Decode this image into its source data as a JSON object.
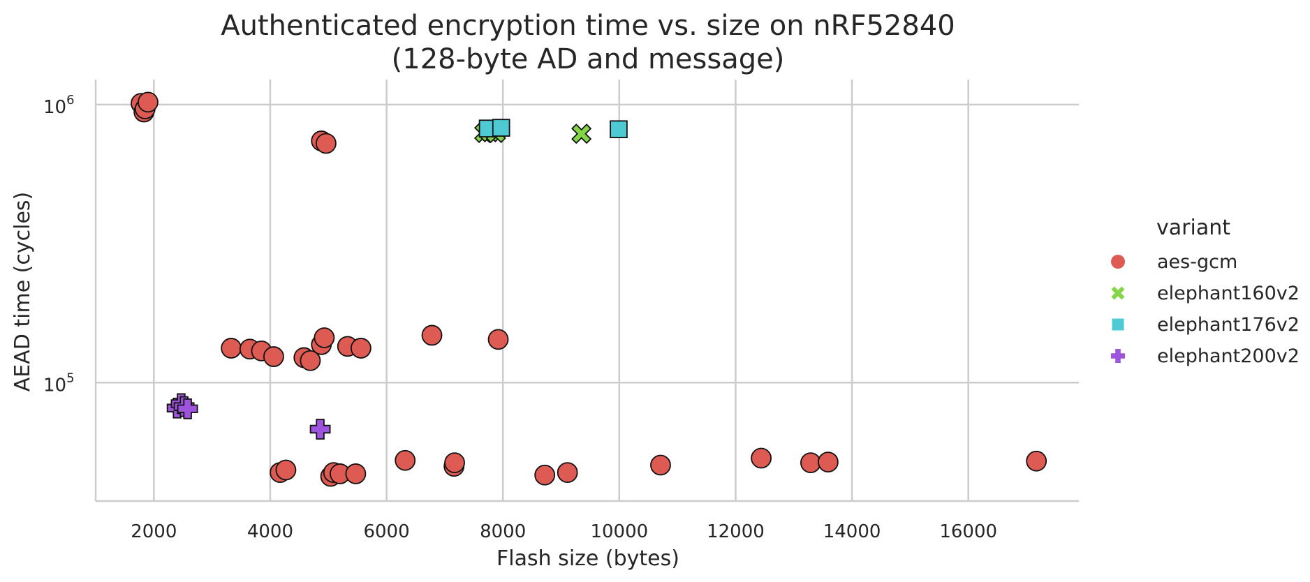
{
  "chart_data": {
    "type": "scatter",
    "title": "Authenticated encryption time vs. size on nRF52840",
    "subtitle": "(128-byte AD and message)",
    "xlabel": "Flash size (bytes)",
    "ylabel": "AEAD time (cycles)",
    "xscale": "linear",
    "yscale": "log",
    "xlim": [
      1000,
      17900
    ],
    "ylim": [
      37500,
      1230000
    ],
    "xticks": [
      2000,
      4000,
      6000,
      8000,
      10000,
      12000,
      14000,
      16000
    ],
    "xtick_labels": [
      "2000",
      "4000",
      "6000",
      "8000",
      "10000",
      "12000",
      "14000",
      "16000"
    ],
    "yticks": [
      100000,
      1000000
    ],
    "ytick_labels": [
      {
        "base": "10",
        "exp": "5"
      },
      {
        "base": "10",
        "exp": "6"
      }
    ],
    "grid": true,
    "legend": {
      "title": "variant",
      "position": "right"
    },
    "series": [
      {
        "name": "aes-gcm",
        "marker": "circle",
        "color": "#dd5b52",
        "points": [
          [
            1780,
            1010000
          ],
          [
            1830,
            940000
          ],
          [
            1850,
            965000
          ],
          [
            1900,
            1020000
          ],
          [
            4880,
            740000
          ],
          [
            4960,
            725000
          ],
          [
            3330,
            133000
          ],
          [
            3650,
            132000
          ],
          [
            3850,
            130000
          ],
          [
            4060,
            124000
          ],
          [
            4580,
            123000
          ],
          [
            4690,
            120000
          ],
          [
            4880,
            137000
          ],
          [
            4930,
            145000
          ],
          [
            5330,
            135000
          ],
          [
            5560,
            133000
          ],
          [
            6780,
            148000
          ],
          [
            7920,
            143000
          ],
          [
            4170,
            47500
          ],
          [
            4270,
            48500
          ],
          [
            5040,
            46000
          ],
          [
            5090,
            47500
          ],
          [
            5200,
            47000
          ],
          [
            5470,
            47000
          ],
          [
            6320,
            52500
          ],
          [
            7160,
            50000
          ],
          [
            7170,
            51500
          ],
          [
            8720,
            46500
          ],
          [
            9110,
            47500
          ],
          [
            10710,
            50500
          ],
          [
            12440,
            53500
          ],
          [
            13290,
            51500
          ],
          [
            13590,
            51800
          ],
          [
            17170,
            52200
          ]
        ]
      },
      {
        "name": "elephant160v2",
        "marker": "x",
        "color": "#85d548",
        "points": [
          [
            7680,
            790000
          ],
          [
            7780,
            795000
          ],
          [
            7880,
            790000
          ],
          [
            9350,
            785000
          ]
        ]
      },
      {
        "name": "elephant176v2",
        "marker": "square",
        "color": "#4ecad4",
        "points": [
          [
            7740,
            820000
          ],
          [
            7970,
            825000
          ],
          [
            9990,
            815000
          ]
        ]
      },
      {
        "name": "elephant200v2",
        "marker": "plus",
        "color": "#9f54de",
        "points": [
          [
            2400,
            81000
          ],
          [
            2470,
            84000
          ],
          [
            2520,
            82000
          ],
          [
            2580,
            80500
          ],
          [
            4860,
            68000
          ]
        ]
      }
    ]
  }
}
